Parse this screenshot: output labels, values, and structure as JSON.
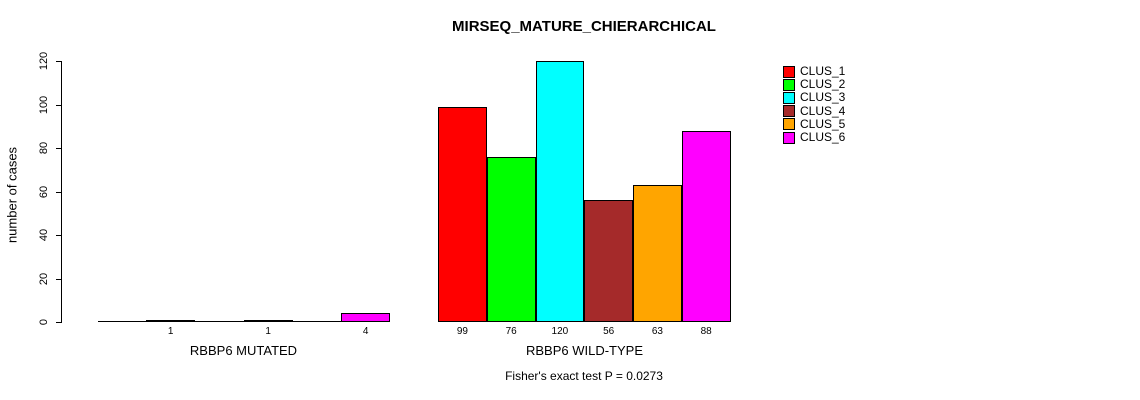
{
  "chart_data": {
    "type": "bar",
    "title": "MIRSEQ_MATURE_CHIERARCHICAL",
    "ylabel": "number of cases",
    "xlabel": "",
    "ylim": [
      0,
      120
    ],
    "yticks": [
      0,
      20,
      40,
      60,
      80,
      100,
      120
    ],
    "grid": false,
    "legend_position": "right",
    "background": "#FFFFFF",
    "series_names": [
      "CLUS_1",
      "CLUS_2",
      "CLUS_3",
      "CLUS_4",
      "CLUS_5",
      "CLUS_6"
    ],
    "series_colors": [
      "#FF0000",
      "#00FF00",
      "#00FFFF",
      "#A52A2A",
      "#FFA500",
      "#FF00FF"
    ],
    "groups": [
      {
        "label": "RBBP6 MUTATED",
        "values": [
          0,
          1,
          0,
          1,
          0,
          4
        ],
        "bar_labels": [
          "",
          "1",
          "",
          "1",
          "",
          "4"
        ]
      },
      {
        "label": "RBBP6 WILD-TYPE",
        "values": [
          99,
          76,
          120,
          56,
          63,
          88
        ],
        "bar_labels": [
          "99",
          "76",
          "120",
          "56",
          "63",
          "88"
        ]
      }
    ],
    "annotation": "Fisher's exact test P = 0.0273"
  }
}
